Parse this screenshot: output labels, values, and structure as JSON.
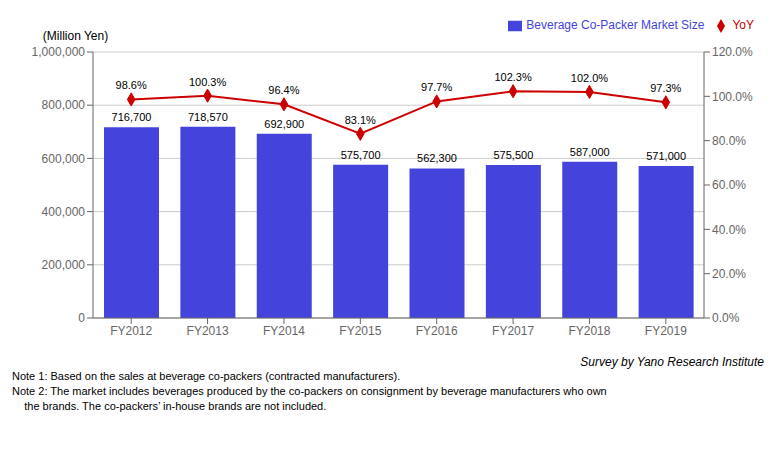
{
  "chart_data": {
    "type": "bar",
    "categories": [
      "FY2012",
      "FY2013",
      "FY2014",
      "FY2015",
      "FY2016",
      "FY2017",
      "FY2018",
      "FY2019"
    ],
    "series": [
      {
        "name": "Beverage Co-Packer Market Size",
        "type": "bar",
        "color": "#4444dd",
        "values": [
          716700,
          718570,
          692900,
          575700,
          562300,
          575500,
          587000,
          571000
        ],
        "value_labels": [
          "716,700",
          "718,570",
          "692,900",
          "575,700",
          "562,300",
          "575,500",
          "587,000",
          "571,000"
        ]
      },
      {
        "name": "YoY",
        "type": "line",
        "color": "#cc0000",
        "marker": "diamond",
        "axis": "y2",
        "values": [
          0.986,
          1.003,
          0.964,
          0.831,
          0.977,
          1.023,
          1.02,
          0.973
        ],
        "value_labels": [
          "98.6%",
          "100.3%",
          "96.4%",
          "83.1%",
          "97.7%",
          "102.3%",
          "102.0%",
          "97.3%"
        ]
      }
    ],
    "ylabel": "(Million Yen)",
    "ylim": [
      0,
      1000000
    ],
    "yticks": [
      0,
      {
        "value": 200000,
        "label": "200,000"
      },
      {
        "value": 400000,
        "label": "400,000"
      },
      {
        "value": 600000,
        "label": "600,000"
      },
      {
        "value": 800000,
        "label": "800,000"
      },
      {
        "value": 1000000,
        "label": "1,000,000"
      }
    ],
    "y2lim": [
      0.0,
      1.2
    ],
    "y2ticks": [
      {
        "value": 0.0,
        "label": "0.0%"
      },
      {
        "value": 0.2,
        "label": "20.0%"
      },
      {
        "value": 0.4,
        "label": "40.0%"
      },
      {
        "value": 0.6,
        "label": "60.0%"
      },
      {
        "value": 0.8,
        "label": "80.0%"
      },
      {
        "value": 1.0,
        "label": "100.0%"
      },
      {
        "value": 1.2,
        "label": "120.0%"
      }
    ],
    "grid": true,
    "legend": "upper right",
    "data_labels": true,
    "annotations": [
      "Survey by Yano Research Institute",
      "Note 1: Based on the sales at beverage co-packers (contracted manufacturers).",
      "Note 2: The market includes beverages produced by the co-packers on consignment by beverage manufacturers who own",
      "    the brands. The co-packers’ in-house brands are not included."
    ]
  }
}
